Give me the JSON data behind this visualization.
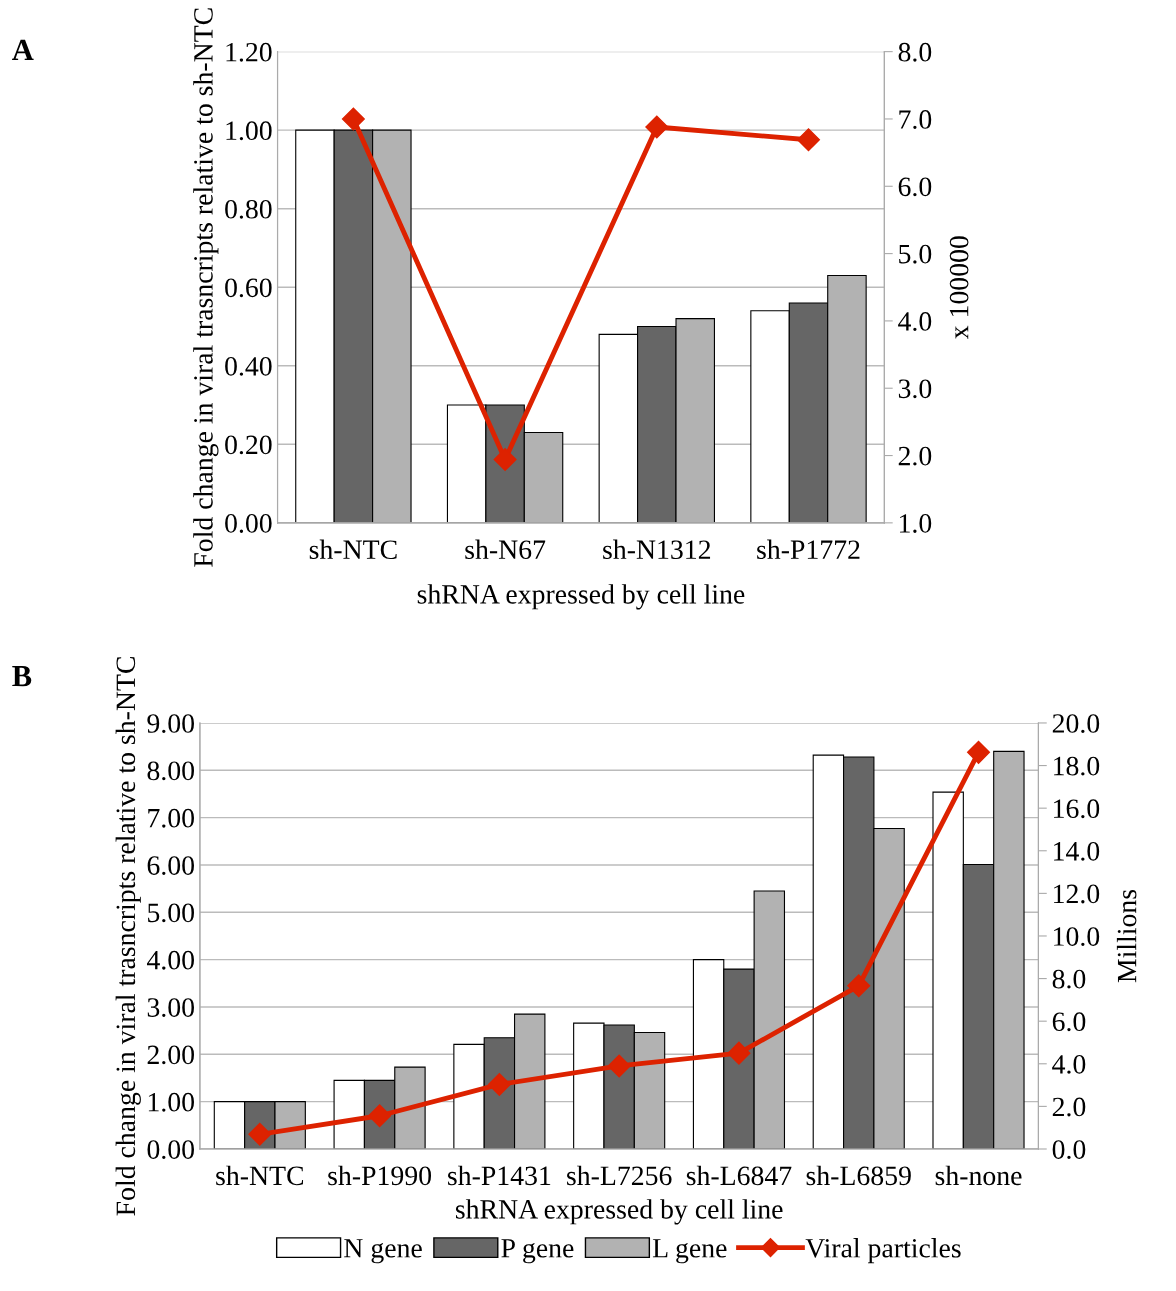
{
  "chart_data": [
    {
      "type": "bar",
      "annotations": [
        "A"
      ],
      "xlabel": "shRNA expressed by cell line",
      "ylabel": "Fold change in viral trasncripts relative to sh-NTC",
      "y2label": "x 100000",
      "categories": [
        "sh-NTC",
        "sh-N67",
        "sh-N1312",
        "sh-P1772"
      ],
      "series": [
        {
          "color": "#ffffff",
          "values": [
            1.0,
            0.3,
            0.48,
            0.54
          ]
        },
        {
          "color": "#666666",
          "values": [
            1.0,
            0.3,
            0.5,
            0.56
          ]
        },
        {
          "color": "#b2b2b2",
          "values": [
            1.0,
            0.23,
            0.52,
            0.63
          ]
        },
        {
          "type": "line",
          "axis": "y2",
          "color": "#dd2200",
          "marker": "diamond",
          "values": [
            7.0,
            1.94,
            6.88,
            6.69
          ]
        }
      ],
      "ylim": [
        0,
        1.2
      ],
      "yticks": [
        {
          "value": 0,
          "label": "0.00"
        },
        {
          "value": 0.2,
          "label": "0.20"
        },
        {
          "value": 0.4,
          "label": "0.40"
        },
        {
          "value": 0.6,
          "label": "0.60"
        },
        {
          "value": 0.8,
          "label": "0.80"
        },
        {
          "value": 1.0,
          "label": "1.00"
        },
        {
          "value": 1.2,
          "label": "1.20"
        }
      ],
      "y2lim": [
        1,
        8
      ],
      "y2ticks": [
        {
          "value": 1,
          "label": "1.0"
        },
        {
          "value": 2,
          "label": "2.0"
        },
        {
          "value": 3,
          "label": "3.0"
        },
        {
          "value": 4,
          "label": "4.0"
        },
        {
          "value": 5,
          "label": "5.0"
        },
        {
          "value": 6,
          "label": "6.0"
        },
        {
          "value": 7,
          "label": "7.0"
        },
        {
          "value": 8,
          "label": "8.0"
        }
      ],
      "grid": "y"
    },
    {
      "type": "bar",
      "annotations": [
        "B"
      ],
      "xlabel": "shRNA expressed by cell line",
      "ylabel": "Fold change in viral trasncripts relative to sh-NTC",
      "y2label": "Millions",
      "categories": [
        "sh-NTC",
        "sh-P1990",
        "sh-P1431",
        "sh-L7256",
        "sh-L6847",
        "sh-L6859",
        "sh-none"
      ],
      "series": [
        {
          "name": "N gene",
          "color": "#ffffff",
          "values": [
            1.0,
            1.45,
            2.21,
            2.66,
            4.0,
            8.32,
            7.54
          ]
        },
        {
          "name": "P gene",
          "color": "#666666",
          "values": [
            1.0,
            1.45,
            2.35,
            2.62,
            3.8,
            8.28,
            6.01
          ]
        },
        {
          "name": "L gene",
          "color": "#b2b2b2",
          "values": [
            1.0,
            1.73,
            2.85,
            2.46,
            5.45,
            6.77,
            8.4
          ]
        },
        {
          "name": "Viral particles",
          "type": "line",
          "axis": "y2",
          "color": "#dd2200",
          "marker": "diamond",
          "values": [
            0.69,
            1.56,
            3.03,
            3.9,
            4.5,
            7.66,
            18.62
          ]
        }
      ],
      "ylim": [
        0,
        9
      ],
      "yticks": [
        {
          "value": 0,
          "label": "0.00"
        },
        {
          "value": 1,
          "label": "1.00"
        },
        {
          "value": 2,
          "label": "2.00"
        },
        {
          "value": 3,
          "label": "3.00"
        },
        {
          "value": 4,
          "label": "4.00"
        },
        {
          "value": 5,
          "label": "5.00"
        },
        {
          "value": 6,
          "label": "6.00"
        },
        {
          "value": 7,
          "label": "7.00"
        },
        {
          "value": 8,
          "label": "8.00"
        },
        {
          "value": 9,
          "label": "9.00"
        }
      ],
      "y2lim": [
        0,
        20
      ],
      "y2ticks": [
        {
          "value": 0,
          "label": "0.0"
        },
        {
          "value": 2,
          "label": "2.0"
        },
        {
          "value": 4,
          "label": "4.0"
        },
        {
          "value": 6,
          "label": "6.0"
        },
        {
          "value": 8,
          "label": "8.0"
        },
        {
          "value": 10,
          "label": "10.0"
        },
        {
          "value": 12,
          "label": "12.0"
        },
        {
          "value": 14,
          "label": "14.0"
        },
        {
          "value": 16,
          "label": "16.0"
        },
        {
          "value": 18,
          "label": "18.0"
        },
        {
          "value": 20,
          "label": "20.0"
        }
      ],
      "grid": "y",
      "legend": "bottom"
    }
  ]
}
